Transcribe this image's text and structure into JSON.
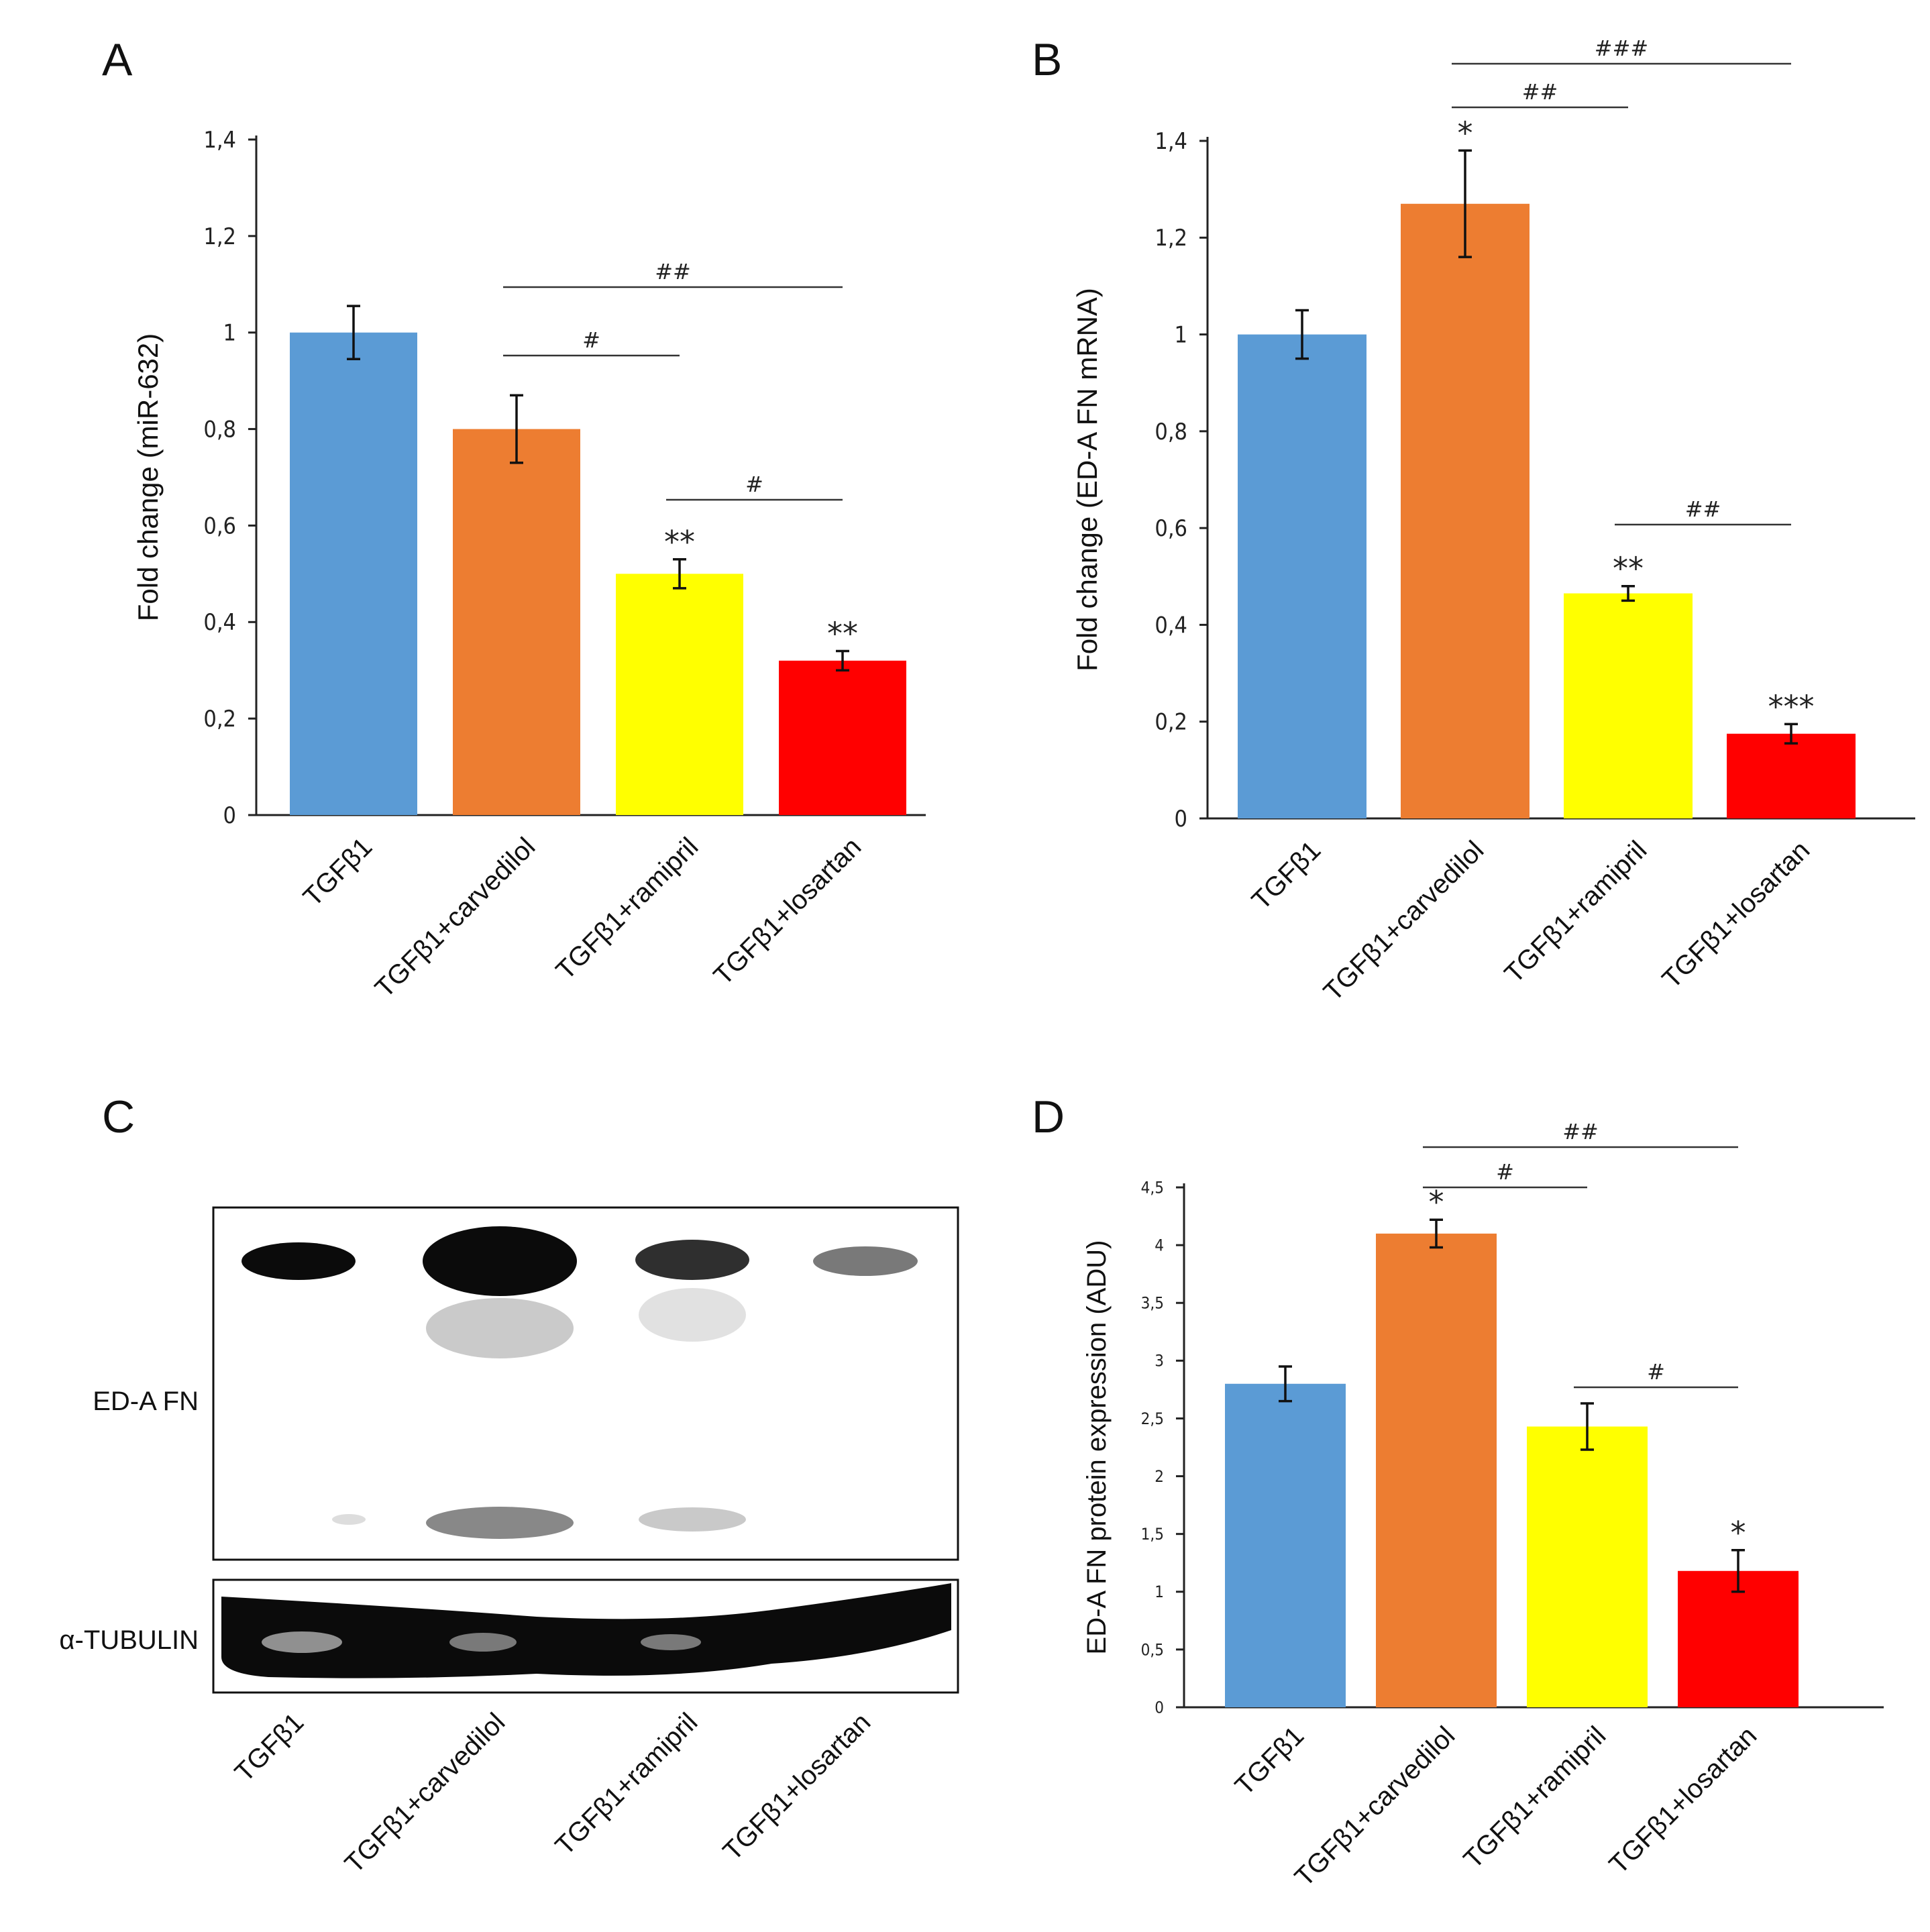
{
  "panels": {
    "A": {
      "letter": "A"
    },
    "B": {
      "letter": "B"
    },
    "C": {
      "letter": "C"
    },
    "D": {
      "letter": "D"
    }
  },
  "colors": {
    "TGFb1": "#5b9bd5",
    "carvedilol": "#ed7d31",
    "ramipril": "#ffff00",
    "losartan": "#ff0000"
  },
  "blot": {
    "band1_label": "ED-A FN",
    "band2_label": "α-TUBULIN",
    "lanes": [
      "TGFβ1",
      "TGFβ1+carvedilol",
      "TGFβ1+ramipril",
      "TGFβ1+losartan"
    ]
  },
  "chart_data": [
    {
      "panel": "A",
      "type": "bar",
      "ylabel": "Fold change (miR-632)",
      "categories": [
        "TGFβ1",
        "TGFβ1+carvedilol",
        "TGFβ1+ramipril",
        "TGFβ1+losartan"
      ],
      "values": [
        1.0,
        0.8,
        0.5,
        0.32
      ],
      "errors": [
        0.055,
        0.07,
        0.03,
        0.02
      ],
      "ylim": [
        0,
        1.4
      ],
      "yticks": [
        "0",
        "0,2",
        "0,4",
        "0,6",
        "0,8",
        "1",
        "1,2",
        "1,4"
      ],
      "bar_marks": [
        "",
        "",
        "**",
        "**"
      ],
      "brackets": [
        {
          "from": 1,
          "to": 3,
          "label": "##"
        },
        {
          "from": 1,
          "to": 2,
          "label": "#"
        },
        {
          "from": 2,
          "to": 3,
          "label": "#"
        }
      ]
    },
    {
      "panel": "B",
      "type": "bar",
      "ylabel": "Fold change (ED-A FN mRNA)",
      "categories": [
        "TGFβ1",
        "TGFβ1+carvedilol",
        "TGFβ1+ramipril",
        "TGFβ1+losartan"
      ],
      "values": [
        1.0,
        1.27,
        0.465,
        0.175
      ],
      "errors": [
        0.05,
        0.11,
        0.015,
        0.02
      ],
      "ylim": [
        0,
        1.4
      ],
      "yticks": [
        "0",
        "0,2",
        "0,4",
        "0,6",
        "0,8",
        "1",
        "1,2",
        "1,4"
      ],
      "bar_marks": [
        "",
        "*",
        "**",
        "***"
      ],
      "brackets": [
        {
          "from": 1,
          "to": 3,
          "label": "###"
        },
        {
          "from": 1,
          "to": 2,
          "label": "##"
        },
        {
          "from": 2,
          "to": 3,
          "label": "##"
        }
      ]
    },
    {
      "panel": "D",
      "type": "bar",
      "ylabel": "ED-A FN protein expression (ADU)",
      "categories": [
        "TGFβ1",
        "TGFβ1+carvedilol",
        "TGFβ1+ramipril",
        "TGFβ1+losartan"
      ],
      "values": [
        2.8,
        4.1,
        2.43,
        1.18
      ],
      "errors": [
        0.15,
        0.12,
        0.2,
        0.18
      ],
      "ylim": [
        0,
        4.5
      ],
      "yticks": [
        "0",
        "0,5",
        "1",
        "1,5",
        "2",
        "2,5",
        "3",
        "3,5",
        "4",
        "4,5"
      ],
      "bar_marks": [
        "",
        "*",
        "",
        "*"
      ],
      "brackets": [
        {
          "from": 1,
          "to": 3,
          "label": "##"
        },
        {
          "from": 1,
          "to": 2,
          "label": "#"
        },
        {
          "from": 2,
          "to": 3,
          "label": "#"
        }
      ]
    }
  ]
}
